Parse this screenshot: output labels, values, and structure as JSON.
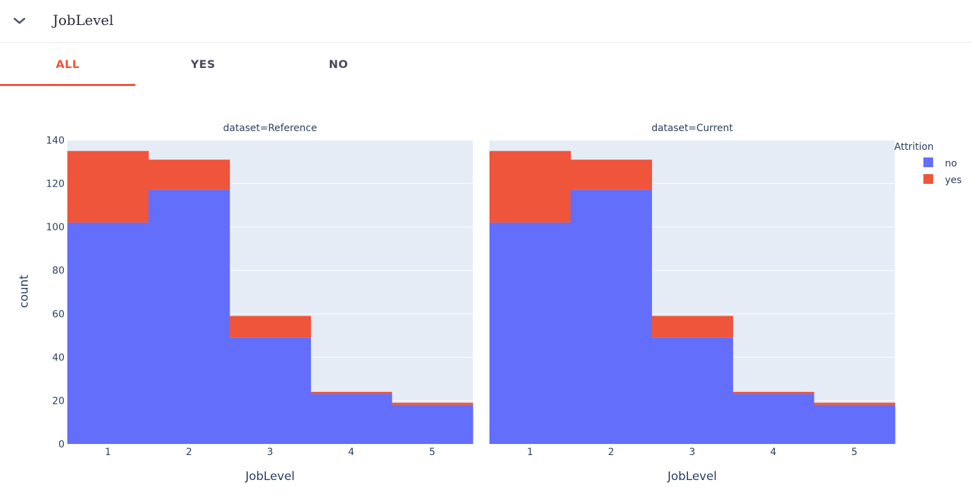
{
  "header": {
    "title": "JobLevel",
    "toggle_icon": "chevron-down-icon"
  },
  "tabs": [
    {
      "label": "ALL",
      "active": true
    },
    {
      "label": "YES",
      "active": false
    },
    {
      "label": "NO",
      "active": false
    }
  ],
  "colors": {
    "no": "#636efa",
    "yes": "#ef553b",
    "plot_bg": "#e5ecf6",
    "accent": "#ef553b"
  },
  "chart_data": {
    "type": "bar",
    "barmode": "stack",
    "categories": [
      "1",
      "2",
      "3",
      "4",
      "5"
    ],
    "xlabel": "JobLevel",
    "ylabel": "count",
    "ylim": [
      0,
      140
    ],
    "yticks": [
      "0",
      "20",
      "40",
      "60",
      "80",
      "100",
      "120",
      "140"
    ],
    "grid": true,
    "legend": {
      "title": "Attrition",
      "placement": "top-right",
      "entries": [
        "no",
        "yes"
      ]
    },
    "subplots": [
      {
        "title": "dataset=Reference",
        "series": [
          {
            "name": "no",
            "values": [
              102,
              117,
              49,
              23,
              18
            ]
          },
          {
            "name": "yes",
            "values": [
              33,
              14,
              10,
              1,
              1
            ]
          }
        ]
      },
      {
        "title": "dataset=Current",
        "series": [
          {
            "name": "no",
            "values": [
              102,
              117,
              49,
              23,
              18
            ]
          },
          {
            "name": "yes",
            "values": [
              33,
              14,
              10,
              1,
              1
            ]
          }
        ]
      }
    ]
  }
}
